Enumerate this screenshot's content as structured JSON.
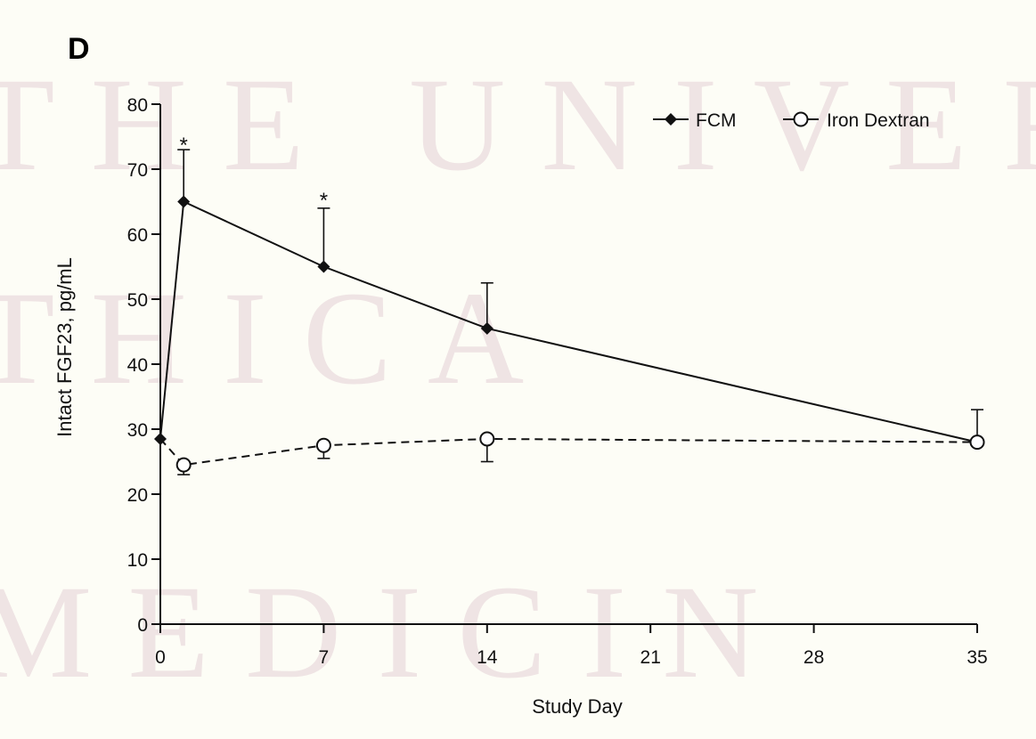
{
  "panel_label": "D",
  "watermark": {
    "lines": [
      "THE UNIVERS",
      "THICA",
      "MEDICIN"
    ]
  },
  "chart_data": {
    "type": "line",
    "title": "",
    "xlabel": "Study Day",
    "ylabel": "Intact FGF23, pg/mL",
    "xlim": [
      0,
      35
    ],
    "ylim": [
      0,
      80
    ],
    "xticks": [
      0,
      7,
      14,
      21,
      28,
      35
    ],
    "yticks": [
      0,
      10,
      20,
      30,
      40,
      50,
      60,
      70,
      80
    ],
    "grid": false,
    "legend_position": "top-right",
    "series": [
      {
        "name": "FCM",
        "marker": "filled-diamond",
        "line_style": "solid",
        "x": [
          0,
          1,
          7,
          14,
          35
        ],
        "y": [
          28.5,
          65,
          55,
          45.5,
          28
        ],
        "error_upper": [
          null,
          73,
          64,
          52.5,
          33
        ]
      },
      {
        "name": "Iron Dextran",
        "marker": "open-circle",
        "line_style": "dashed",
        "x": [
          0,
          1,
          7,
          14,
          35
        ],
        "y": [
          28.5,
          24.5,
          27.5,
          28.5,
          28
        ],
        "error_lower": [
          null,
          23,
          25.5,
          25,
          null
        ]
      }
    ],
    "annotations": [
      {
        "text": "*",
        "x": 1,
        "y": 74.5
      },
      {
        "text": "*",
        "x": 7,
        "y": 66
      }
    ],
    "colors": {
      "line": "#111111",
      "background": "#fdfdf6",
      "watermark": "#efe4e4"
    }
  }
}
